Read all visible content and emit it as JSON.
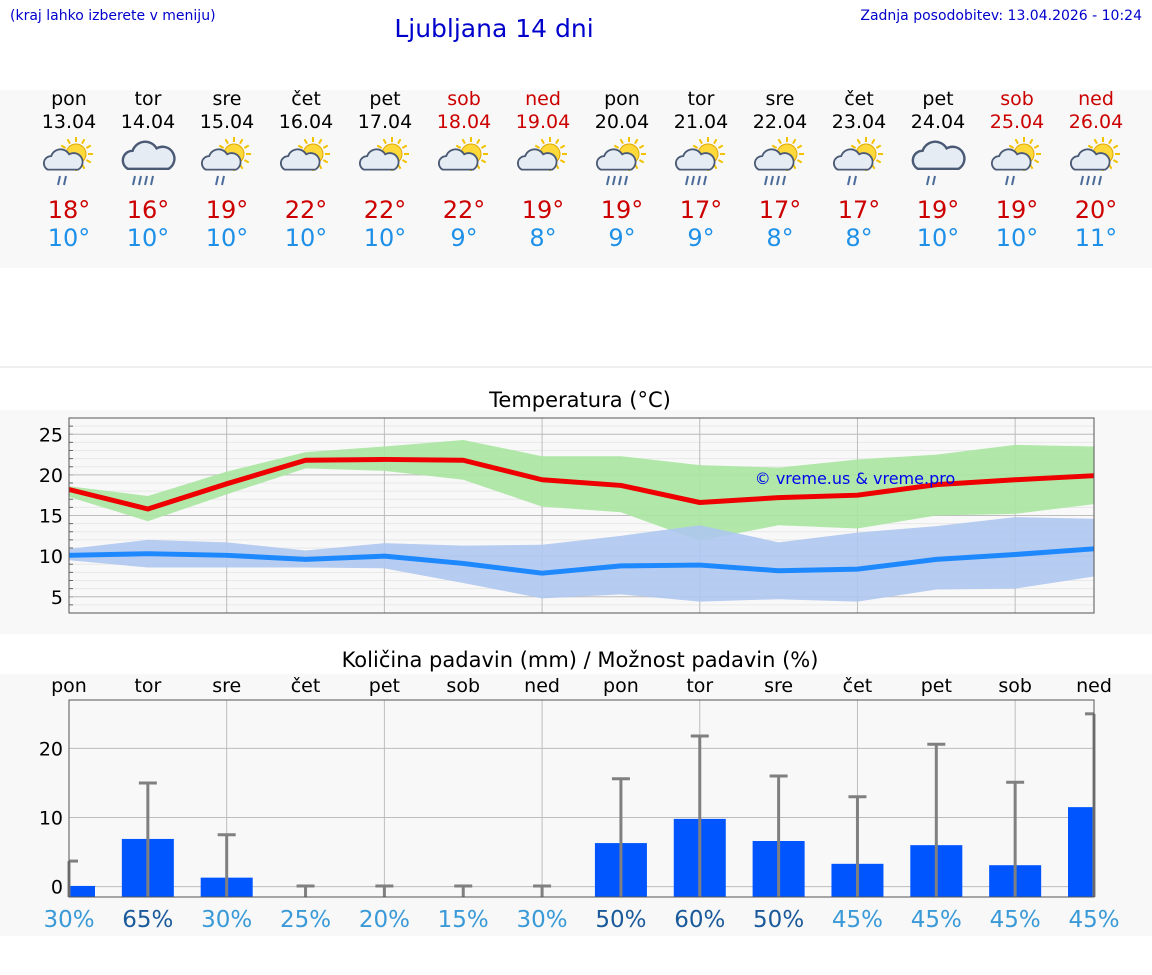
{
  "header": {
    "note": "(kraj lahko izberete v meniju)",
    "title": "Ljubljana 14 dni",
    "updated": "Zadnja posodobitev: 13.04.2026 - 10:24"
  },
  "days": [
    {
      "name": "pon",
      "date": "13.04",
      "weekend": false,
      "icon": "sun-cloud-rain-icon",
      "tmax": "18°",
      "tmin": "10°"
    },
    {
      "name": "tor",
      "date": "14.04",
      "weekend": false,
      "icon": "cloud-heavy-rain-icon",
      "tmax": "16°",
      "tmin": "10°"
    },
    {
      "name": "sre",
      "date": "15.04",
      "weekend": false,
      "icon": "sun-cloud-rain-icon",
      "tmax": "19°",
      "tmin": "10°"
    },
    {
      "name": "čet",
      "date": "16.04",
      "weekend": false,
      "icon": "sun-cloud-icon",
      "tmax": "22°",
      "tmin": "10°"
    },
    {
      "name": "pet",
      "date": "17.04",
      "weekend": false,
      "icon": "sun-cloud-icon",
      "tmax": "22°",
      "tmin": "10°"
    },
    {
      "name": "sob",
      "date": "18.04",
      "weekend": true,
      "icon": "sun-cloud-icon",
      "tmax": "22°",
      "tmin": "9°"
    },
    {
      "name": "ned",
      "date": "19.04",
      "weekend": true,
      "icon": "sun-cloud-icon",
      "tmax": "19°",
      "tmin": "8°"
    },
    {
      "name": "pon",
      "date": "20.04",
      "weekend": false,
      "icon": "sun-cloud-heavy-rain-icon",
      "tmax": "19°",
      "tmin": "9°"
    },
    {
      "name": "tor",
      "date": "21.04",
      "weekend": false,
      "icon": "sun-cloud-heavy-rain-icon",
      "tmax": "17°",
      "tmin": "9°"
    },
    {
      "name": "sre",
      "date": "22.04",
      "weekend": false,
      "icon": "sun-cloud-heavy-rain-icon",
      "tmax": "17°",
      "tmin": "8°"
    },
    {
      "name": "čet",
      "date": "23.04",
      "weekend": false,
      "icon": "sun-cloud-rain-icon",
      "tmax": "17°",
      "tmin": "8°"
    },
    {
      "name": "pet",
      "date": "24.04",
      "weekend": false,
      "icon": "cloud-rain-icon",
      "tmax": "19°",
      "tmin": "10°"
    },
    {
      "name": "sob",
      "date": "25.04",
      "weekend": true,
      "icon": "sun-cloud-rain-icon",
      "tmax": "19°",
      "tmin": "10°"
    },
    {
      "name": "ned",
      "date": "26.04",
      "weekend": true,
      "icon": "sun-cloud-heavy-rain-icon",
      "tmax": "20°",
      "tmin": "11°"
    }
  ],
  "colors": {
    "max_line": "#ee0000",
    "max_band": "#a8e6a0",
    "min_line": "#1e88ff",
    "min_band": "#aec6f0",
    "bar": "#0055ff",
    "whisker": "#808080",
    "prob_high": "#1a5a9a",
    "prob_low": "#3a9ad8"
  },
  "chart_data": [
    {
      "type": "line",
      "title": "Temperatura (°C)",
      "watermark": "© vreme.us & vreme.pro",
      "categories": [
        "pon",
        "tor",
        "sre",
        "čet",
        "pet",
        "sob",
        "ned",
        "pon",
        "tor",
        "sre",
        "čet",
        "pet",
        "sob",
        "ned"
      ],
      "ylim": [
        3,
        27
      ],
      "yticks": [
        5,
        10,
        15,
        20,
        25
      ],
      "grid": true,
      "series": [
        {
          "key": "max",
          "values": [
            18.2,
            15.8,
            18.9,
            21.8,
            21.9,
            21.8,
            19.4,
            18.7,
            16.6,
            17.2,
            17.5,
            18.8,
            19.4,
            19.9
          ],
          "band_low": [
            17.3,
            14.3,
            17.6,
            20.8,
            20.5,
            19.4,
            16.1,
            15.4,
            11.9,
            13.8,
            13.4,
            15.0,
            15.2,
            16.4
          ],
          "band_high": [
            18.6,
            17.4,
            20.4,
            22.8,
            23.5,
            24.3,
            22.3,
            22.3,
            21.2,
            20.9,
            21.9,
            22.5,
            23.7,
            23.5
          ]
        },
        {
          "key": "min",
          "values": [
            10.1,
            10.3,
            10.1,
            9.6,
            10.0,
            9.1,
            7.9,
            8.8,
            8.9,
            8.2,
            8.4,
            9.6,
            10.2,
            10.9
          ],
          "band_low": [
            9.5,
            8.6,
            8.6,
            8.6,
            8.5,
            6.7,
            4.8,
            5.3,
            4.4,
            4.7,
            4.4,
            5.9,
            6.0,
            7.5
          ],
          "band_high": [
            10.9,
            12.0,
            11.7,
            10.7,
            11.6,
            11.3,
            11.4,
            12.5,
            13.8,
            11.7,
            12.9,
            13.7,
            14.8,
            14.6
          ]
        }
      ]
    },
    {
      "type": "bar",
      "title": "Količina padavin (mm) / Možnost padavin (%)",
      "categories": [
        "pon",
        "tor",
        "sre",
        "čet",
        "pet",
        "sob",
        "ned",
        "pon",
        "tor",
        "sre",
        "čet",
        "pet",
        "sob",
        "ned"
      ],
      "ylim": [
        -1.5,
        27
      ],
      "yticks": [
        0,
        10,
        20
      ],
      "grid": true,
      "values": [
        0.1,
        6.9,
        1.3,
        0,
        0,
        0,
        0,
        6.3,
        9.8,
        6.6,
        3.3,
        6.0,
        3.1,
        11.5
      ],
      "error_high": [
        3.7,
        15.0,
        7.5,
        0.1,
        0.1,
        0.1,
        0.1,
        15.6,
        21.8,
        16.0,
        13.0,
        20.6,
        15.1,
        25.0
      ],
      "probabilities": [
        "30%",
        "65%",
        "30%",
        "25%",
        "20%",
        "15%",
        "30%",
        "50%",
        "60%",
        "50%",
        "45%",
        "45%",
        "45%",
        "45%"
      ],
      "prob_values": [
        30,
        65,
        30,
        25,
        20,
        15,
        30,
        50,
        60,
        50,
        45,
        45,
        45,
        45
      ]
    }
  ]
}
